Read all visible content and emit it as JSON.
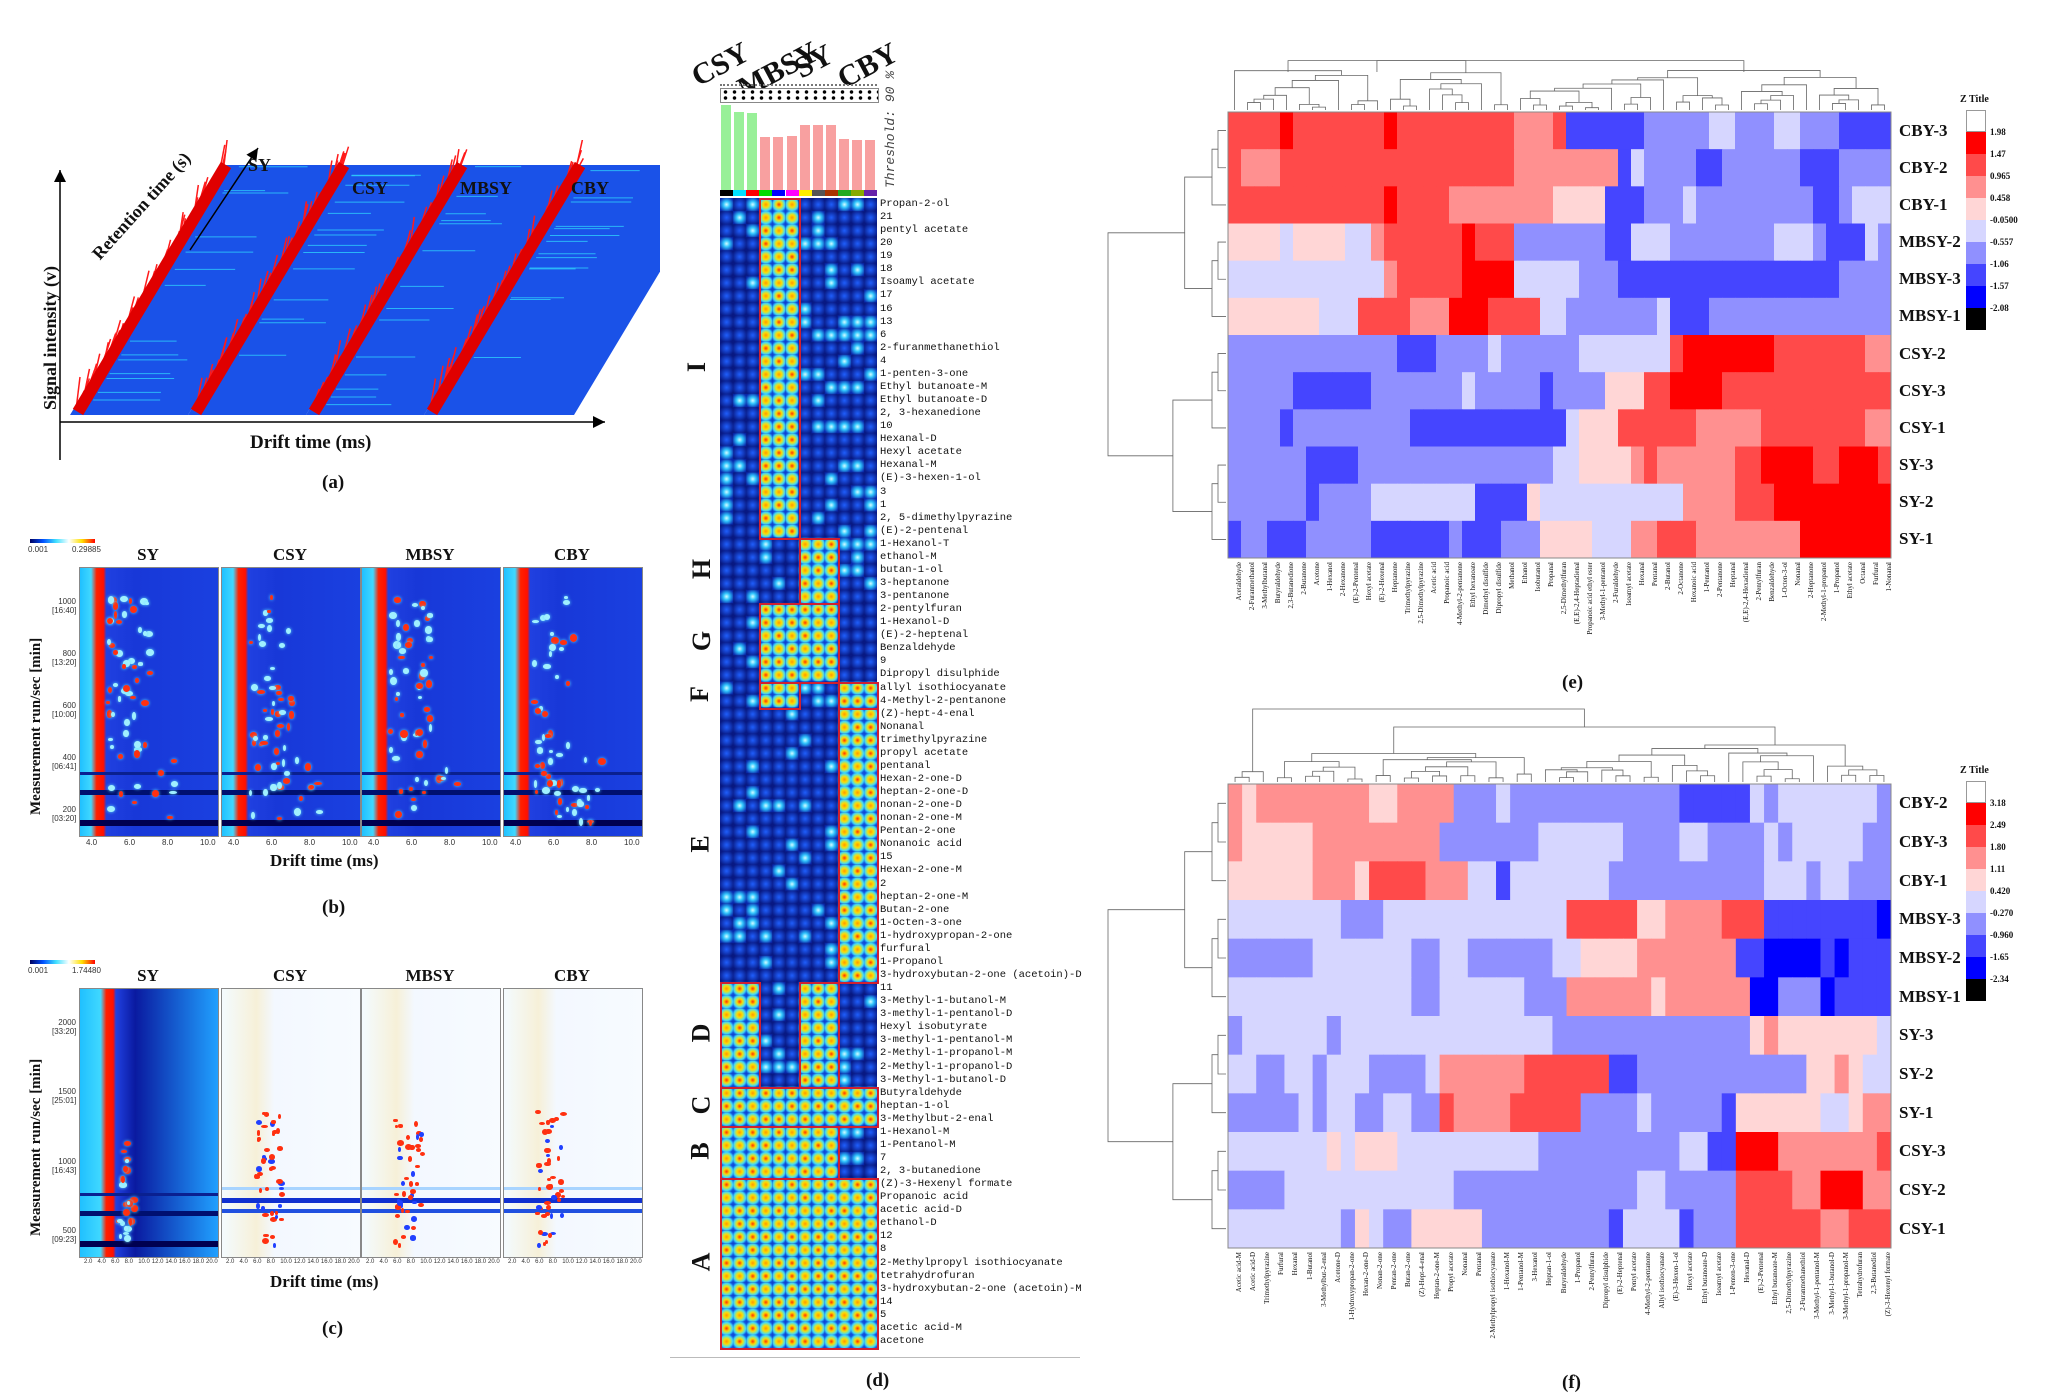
{
  "panel_a": {
    "label": "(a)",
    "z_axis": "Retention time (s)",
    "y_axis": "Signal intensity (v)",
    "x_axis": "Drift time (ms)",
    "samples": [
      "SY",
      "CSY",
      "MBSY",
      "CBY"
    ]
  },
  "panel_b": {
    "label": "(b)",
    "samples": [
      "SY",
      "CSY",
      "MBSY",
      "CBY"
    ],
    "y_axis": "Measurement run/sec [min]",
    "x_axis": "Drift time (ms)",
    "y_ticks": [
      [
        "1000",
        "[16:40]"
      ],
      [
        "800",
        "[13:20]"
      ],
      [
        "600",
        "[10:00]"
      ],
      [
        "400",
        "[06:41]"
      ],
      [
        "200",
        "[03:20]"
      ]
    ],
    "x_ticks": [
      "4.0",
      "6.0",
      "8.0",
      "10.0"
    ],
    "colorbar_min": "0.001",
    "colorbar_max": "0.29885"
  },
  "panel_c": {
    "label": "(c)",
    "samples": [
      "SY",
      "CSY",
      "MBSY",
      "CBY"
    ],
    "y_axis": "Measurement run/sec [min]",
    "x_axis": "Drift time (ms)",
    "y_ticks": [
      [
        "2000",
        "[33:20]"
      ],
      [
        "1500",
        "[25:01]"
      ],
      [
        "1000",
        "[16:43]"
      ],
      [
        "500",
        "[09:23]"
      ]
    ],
    "x_ticks": [
      "2.0",
      "4.0",
      "6.0",
      "8.0",
      "10.0",
      "12.0",
      "14.0",
      "16.0",
      "18.0",
      "20.0"
    ],
    "colorbar_min": "0.001",
    "colorbar_max": "1.74480"
  },
  "panel_d": {
    "label": "(d)",
    "sample_groups": [
      "CSY",
      "MBSY",
      "SY",
      "CBY"
    ],
    "threshold": "Threshold: 90 %",
    "bar_levels": [
      1.0,
      0.92,
      0.91,
      0.62,
      0.62,
      0.63,
      0.76,
      0.76,
      0.76,
      0.6,
      0.59,
      0.59
    ],
    "bar_colors": [
      "#98f098",
      "#f8a0a0"
    ],
    "stripe_colors": [
      "#000000",
      "#00e0ff",
      "#ff0000",
      "#00dd00",
      "#0000ff",
      "#ff00ff",
      "#ffee00",
      "#555555",
      "#aa3300",
      "#22aa22",
      "#88aa00",
      "#6622aa"
    ],
    "groups": [
      {
        "label": "I",
        "count": 26
      },
      {
        "label": "H",
        "count": 5
      },
      {
        "label": "G",
        "count": 6
      },
      {
        "label": "F",
        "count": 2
      },
      {
        "label": "E",
        "count": 21
      },
      {
        "label": "D",
        "count": 8
      },
      {
        "label": "C",
        "count": 3
      },
      {
        "label": "B",
        "count": 4
      },
      {
        "label": "A",
        "count": 13
      }
    ],
    "compounds": [
      "Propan-2-ol",
      "21",
      "pentyl acetate",
      "20",
      "19",
      "18",
      "Isoamyl acetate",
      "17",
      "16",
      "13",
      "6",
      "2-furanmethanethiol",
      "4",
      "1-penten-3-one",
      "Ethyl butanoate-M",
      "Ethyl butanoate-D",
      "2, 3-hexanedione",
      "10",
      "Hexanal-D",
      "Hexyl acetate",
      "Hexanal-M",
      "(E)-3-hexen-1-ol",
      "3",
      "1",
      "2, 5-dimethylpyrazine",
      "(E)-2-pentenal",
      "1-Hexanol-T",
      "ethanol-M",
      "butan-1-ol",
      "3-heptanone",
      "3-pentanone",
      "2-pentylfuran",
      "1-Hexanol-D",
      "(E)-2-heptenal",
      "Benzaldehyde",
      "9",
      "Dipropyl disulphide",
      "allyl isothiocyanate",
      "4-Methyl-2-pentanone",
      "(Z)-hept-4-enal",
      "Nonanal",
      "trimethylpyrazine",
      "propyl acetate",
      "pentanal",
      "Hexan-2-one-D",
      "heptan-2-one-D",
      "nonan-2-one-D",
      "nonan-2-one-M",
      "Pentan-2-one",
      "Nonanoic acid",
      "15",
      "Hexan-2-one-M",
      "2",
      "heptan-2-one-M",
      "Butan-2-one",
      "1-Octen-3-one",
      "1-hydroxypropan-2-one",
      "furfural",
      "1-Propanol",
      "3-hydroxybutan-2-one (acetoin)-D",
      "11",
      "3-Methyl-1-butanol-M",
      "3-methyl-1-pentanol-D",
      "Hexyl isobutyrate",
      "3-methyl-1-pentanol-M",
      "2-Methyl-1-propanol-M",
      "2-Methyl-1-propanol-D",
      "3-Methyl-1-butanol-D",
      "Butyraldehyde",
      "heptan-1-ol",
      "3-Methylbut-2-enal",
      "1-Hexanol-M",
      "1-Pentanol-M",
      "7",
      "2, 3-butanedione",
      "(Z)-3-Hexenyl formate",
      "Propanoic acid",
      "acetic acid-D",
      "ethanol-D",
      "12",
      "8",
      "2-Methylpropyl isothiocyanate",
      "tetrahydrofuran",
      "3-hydroxybutan-2-one (acetoin)-M",
      "14",
      "5",
      "acetic acid-M",
      "acetone"
    ]
  },
  "panel_e": {
    "label": "(e)",
    "legend_title": "Z Title",
    "legend_ticks": [
      "1.98",
      "1.47",
      "0.965",
      "0.458",
      "-0.0500",
      "-0.557",
      "-1.06",
      "-1.57",
      "-2.08"
    ],
    "rows": [
      "CBY-3",
      "CBY-2",
      "CBY-1",
      "MBSY-2",
      "MBSY-3",
      "MBSY-1",
      "CSY-2",
      "CSY-3",
      "CSY-1",
      "SY-3",
      "SY-2",
      "SY-1"
    ],
    "columns": [
      "Acetaldehyde",
      "2-Furanmethanol",
      "3-Methylbutanal",
      "Butyraldehyde",
      "2,3-Butanedione",
      "2-Butanone",
      "Acetone",
      "1-Hexanol",
      "2-Hexanone",
      "(E)-2-Pentenal",
      "Hexyl acetate",
      "(E)-2-Hexenal",
      "Heptanone",
      "Trimethylpyrazine",
      "2,5-Dimethylpyrazine",
      "Acetic acid",
      "Propanoic acid",
      "4-Methyl-2-pentanone",
      "Ethyl hexanoate",
      "Dimethyl disulfide",
      "Dipropyl disulfide",
      "Methanol",
      "Ethanol",
      "Isobutanol",
      "Propanal",
      "2,5-Dimethylfuran",
      "(E,E)-2,4-Heptadienal",
      "Propanoic acid ethyl ester",
      "3-Methyl-1-pentanol",
      "2-Furaldehyde",
      "Isoamyl acetate",
      "Hexanal",
      "Pentanal",
      "2-Butanol",
      "2-Octanone",
      "Hexanoic acid",
      "1-Pentanol",
      "2-Pentanone",
      "Heptanal",
      "(E,E)-2,4-Hexadienal",
      "2-Pentylfuran",
      "Benzaldehyde",
      "1-Octen-3-ol",
      "Nonanal",
      "2-Heptanone",
      "2-Methyl-1-propanol",
      "1-Propanol",
      "Ethyl acetate",
      "Octanal",
      "Furfural",
      "1-Nonanal"
    ]
  },
  "panel_f": {
    "label": "(f)",
    "legend_title": "Z Title",
    "legend_ticks": [
      "3.18",
      "2.49",
      "1.80",
      "1.11",
      "0.420",
      "-0.270",
      "-0.960",
      "-1.65",
      "-2.34"
    ],
    "rows": [
      "CBY-2",
      "CBY-3",
      "CBY-1",
      "MBSY-3",
      "MBSY-2",
      "MBSY-1",
      "SY-3",
      "SY-2",
      "SY-1",
      "CSY-3",
      "CSY-2",
      "CSY-1"
    ],
    "columns": [
      "Acetic acid-M",
      "Acetic acid-D",
      "Trimethylpyrazine",
      "Furfural",
      "Hexanal",
      "1-Butanol",
      "3-Methylbut-2-enal",
      "Acetone-D",
      "1-Hydroxypropan-2-one",
      "Hexan-2-one-D",
      "Nonan-2-one",
      "Pentan-2-one",
      "Butan-2-one",
      "(Z)-Hept-4-enal",
      "Heptan-2-one-M",
      "Propyl acetate",
      "Nonanal",
      "Pentanal",
      "2-Methylpropyl isothiocyanate",
      "1-Hexanol-M",
      "1-Pentanol-M",
      "3-Hexanol",
      "Heptan-1-ol",
      "Butyraldehyde",
      "1-Propanol",
      "2-Pentylfuran",
      "Dipropyl disulphide",
      "(E)-2-Heptenal",
      "Pentyl acetate",
      "4-Methyl-2-pentanone",
      "Allyl isothiocyanate",
      "(E)-3-Hexen-1-ol",
      "Hexyl acetate",
      "Ethyl butanoate-D",
      "Isoamyl acetate",
      "1-Penten-3-one",
      "Hexanal-D",
      "(E)-2-Pentenal",
      "Ethyl butanoate-M",
      "2,5-Dimethylpyrazine",
      "2-Furanmethanethiol",
      "3-Methyl-1-pentanol-M",
      "3-Methyl-1-butanol-D",
      "3-Methyl-1-propanol-M",
      "Tetrahydrofuran",
      "2,3-Butanediol",
      "(Z)-3-Hexenyl formate"
    ]
  },
  "colors": {
    "heat_scale": [
      "#000000",
      "#0000ff",
      "#4545ff",
      "#9090ff",
      "#d6d6ff",
      "#ffd6d6",
      "#ff9090",
      "#ff4a4a",
      "#ff0000"
    ],
    "gallery_box": "#d02030",
    "ims_background": "#1238d8"
  }
}
